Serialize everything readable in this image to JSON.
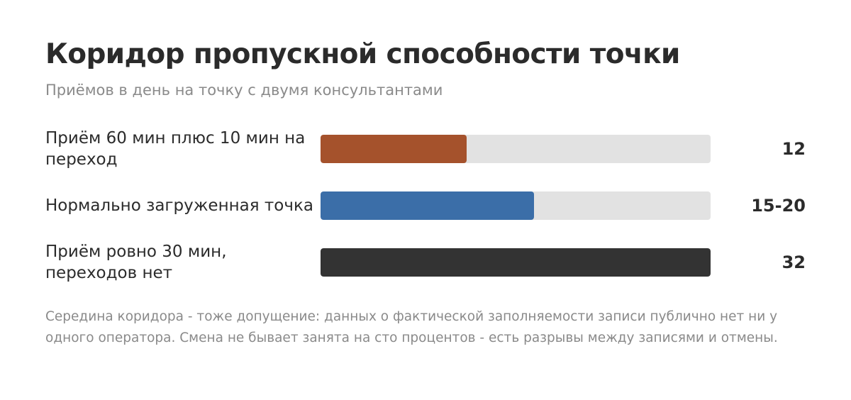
{
  "title": "Коридор пропускной способности точки",
  "subtitle": "Приёмов в день на точку с двумя консультантами",
  "footnote": "Середина коридора - тоже допущение: данных о фактической заполняемости записи публично нет ни у одного оператора. Смена не бывает занята на сто процентов - есть разрывы между записями и отмены.",
  "chart_data": {
    "type": "bar",
    "orientation": "horizontal",
    "categories": [
      "Приём 60 мин плюс 10 мин на переход",
      "Нормально загруженная точка",
      "Приём ровно 30 мин, переходов нет"
    ],
    "values": [
      12,
      17.5,
      32
    ],
    "value_labels": [
      "12",
      "15-20",
      "32"
    ],
    "colors": [
      "#a5522c",
      "#3b6ea8",
      "#333333"
    ],
    "track_color": "#e2e2e2",
    "xlim": [
      0,
      32
    ],
    "grid": false,
    "legend": "none"
  }
}
